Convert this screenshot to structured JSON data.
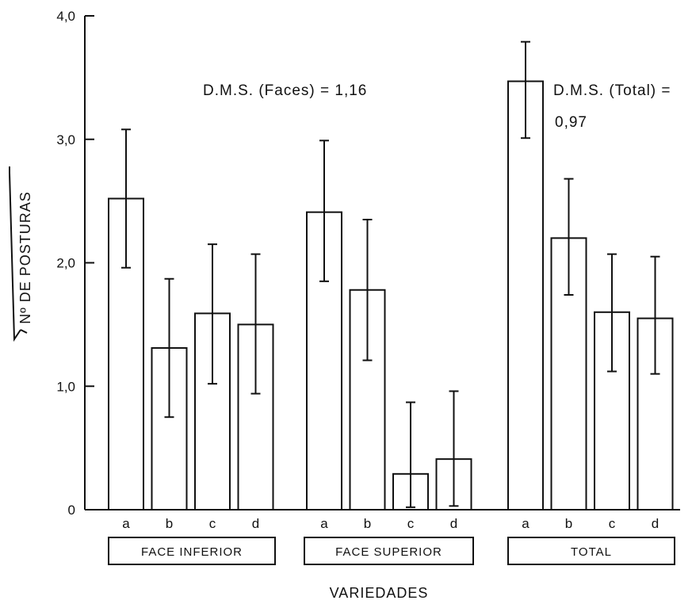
{
  "chart_data": {
    "type": "bar",
    "title": "",
    "xlabel": "VARIEDADES",
    "ylabel": "Nº DE POSTURAS",
    "ylabel_radical": "√",
    "ylim": [
      0,
      4.0
    ],
    "yticks": [
      {
        "value": 0,
        "label": "0"
      },
      {
        "value": 1.0,
        "label": "1,0"
      },
      {
        "value": 2.0,
        "label": "2,0"
      },
      {
        "value": 3.0,
        "label": "3,0"
      },
      {
        "value": 4.0,
        "label": "4,0"
      }
    ],
    "groups": [
      {
        "name": "FACE INFERIOR",
        "bars": [
          {
            "label": "a",
            "value": 2.52,
            "err_low": 1.96,
            "err_high": 3.08
          },
          {
            "label": "b",
            "value": 1.31,
            "err_low": 0.75,
            "err_high": 1.87
          },
          {
            "label": "c",
            "value": 1.59,
            "err_low": 1.02,
            "err_high": 2.15
          },
          {
            "label": "d",
            "value": 1.5,
            "err_low": 0.94,
            "err_high": 2.07
          }
        ]
      },
      {
        "name": "FACE SUPERIOR",
        "bars": [
          {
            "label": "a",
            "value": 2.41,
            "err_low": 1.85,
            "err_high": 2.99
          },
          {
            "label": "b",
            "value": 1.78,
            "err_low": 1.21,
            "err_high": 2.35
          },
          {
            "label": "c",
            "value": 0.29,
            "err_low": 0.02,
            "err_high": 0.87
          },
          {
            "label": "d",
            "value": 0.41,
            "err_low": 0.03,
            "err_high": 0.96
          }
        ]
      },
      {
        "name": "TOTAL",
        "bars": [
          {
            "label": "a",
            "value": 3.47,
            "err_low": 3.01,
            "err_high": 3.79
          },
          {
            "label": "b",
            "value": 2.2,
            "err_low": 1.74,
            "err_high": 2.68
          },
          {
            "label": "c",
            "value": 1.6,
            "err_low": 1.12,
            "err_high": 2.07
          },
          {
            "label": "d",
            "value": 1.55,
            "err_low": 1.1,
            "err_high": 2.05
          }
        ]
      }
    ],
    "annotations": [
      {
        "text": "D.M.S. (Faces) = 1,16"
      },
      {
        "text": "D.M.S. (Total) ="
      },
      {
        "text": "0,97"
      }
    ]
  }
}
